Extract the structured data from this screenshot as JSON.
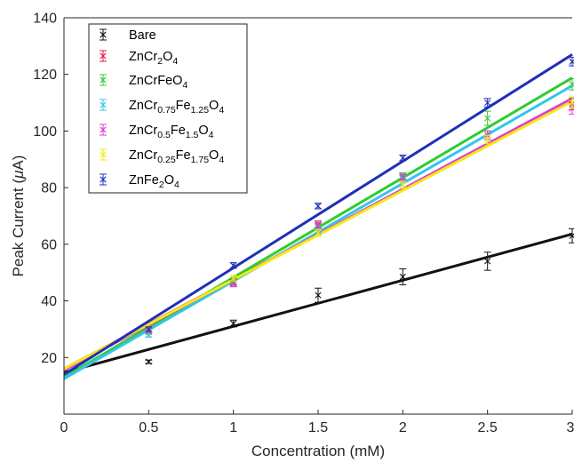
{
  "chart_data": {
    "type": "scatter",
    "xlabel_prefix": "Concentration (mM)",
    "ylabel": {
      "main": "Peak Current (",
      "greek": "μ",
      "unit": "A)"
    },
    "xlim": [
      0,
      3
    ],
    "ylim": [
      0,
      140
    ],
    "xticks": [
      "0",
      "0.5",
      "1",
      "1.5",
      "2",
      "2.5",
      "3"
    ],
    "yticks": [
      "20",
      "40",
      "60",
      "80",
      "100",
      "120",
      "140"
    ],
    "x": [
      0.5,
      1,
      1.5,
      2,
      2.5,
      3
    ],
    "legend_position": "top-left",
    "series": [
      {
        "name": "Bare",
        "legend": [
          {
            "t": "Bare"
          }
        ],
        "color": "#111111",
        "values": [
          18.5,
          32.0,
          42.0,
          48.5,
          54.0,
          63.0
        ],
        "errors": [
          0.6,
          1.2,
          2.5,
          2.8,
          3.2,
          2.5
        ],
        "fit": [
          14.7,
          63.6
        ]
      },
      {
        "name": "ZnCr2O4",
        "legend": [
          {
            "t": "ZnCr"
          },
          {
            "t": "2",
            "sub": true
          },
          {
            "t": "O"
          },
          {
            "t": "4",
            "sub": true
          }
        ],
        "color": "#e8174d",
        "values": [
          29.5,
          46.5,
          67.0,
          84.0,
          98.5,
          109.5
        ],
        "errors": [
          0.8,
          1.0,
          1.2,
          1.2,
          1.5,
          2.0
        ],
        "fit": [
          16.0,
          111.0
        ]
      },
      {
        "name": "ZnCrFeO4",
        "legend": [
          {
            "t": "ZnCrFeO"
          },
          {
            "t": "4",
            "sub": true
          }
        ],
        "color": "#2fcc2f",
        "values": [
          29.0,
          47.0,
          66.0,
          84.0,
          104.5,
          116.5
        ],
        "errors": [
          0.8,
          1.0,
          1.2,
          1.2,
          2.5,
          2.0
        ],
        "fit": [
          13.0,
          118.8
        ]
      },
      {
        "name": "ZnCr0.75Fe1.25O4",
        "legend": [
          {
            "t": "ZnCr"
          },
          {
            "t": "0.75",
            "sub": true
          },
          {
            "t": "Fe"
          },
          {
            "t": "1.25",
            "sub": true
          },
          {
            "t": "O"
          },
          {
            "t": "4",
            "sub": true
          }
        ],
        "color": "#33c6e8",
        "values": [
          28.0,
          46.0,
          65.0,
          83.0,
          98.5,
          110.0
        ],
        "errors": [
          0.8,
          1.0,
          1.2,
          1.2,
          1.5,
          2.0
        ],
        "fit": [
          12.5,
          116.0
        ]
      },
      {
        "name": "ZnCr0.5Fe1.5O4",
        "legend": [
          {
            "t": "ZnCr"
          },
          {
            "t": "0.5",
            "sub": true
          },
          {
            "t": "Fe"
          },
          {
            "t": "1.5",
            "sub": true
          },
          {
            "t": "O"
          },
          {
            "t": "4",
            "sub": true
          }
        ],
        "color": "#e23ad6",
        "values": [
          29.5,
          46.0,
          66.5,
          83.5,
          98.5,
          108.0
        ],
        "errors": [
          0.8,
          1.0,
          1.2,
          1.2,
          1.5,
          2.0
        ],
        "fit": [
          15.5,
          111.5
        ]
      },
      {
        "name": "ZnCr0.25Fe1.75O4",
        "legend": [
          {
            "t": "ZnCr"
          },
          {
            "t": "0.25",
            "sub": true
          },
          {
            "t": "Fe"
          },
          {
            "t": "1.75",
            "sub": true
          },
          {
            "t": "O"
          },
          {
            "t": "4",
            "sub": true
          }
        ],
        "color": "#f2ea12",
        "values": [
          30.0,
          48.0,
          64.0,
          81.0,
          97.0,
          110.0
        ],
        "errors": [
          0.8,
          1.0,
          1.2,
          1.2,
          1.5,
          2.0
        ],
        "fit": [
          16.0,
          110.5
        ]
      },
      {
        "name": "ZnFe2O4",
        "legend": [
          {
            "t": "ZnFe"
          },
          {
            "t": "2",
            "sub": true
          },
          {
            "t": "O"
          },
          {
            "t": "4",
            "sub": true
          }
        ],
        "color": "#1f2fb8",
        "values": [
          30.0,
          52.5,
          73.5,
          90.5,
          110.0,
          124.5
        ],
        "errors": [
          0.8,
          1.0,
          1.0,
          1.0,
          1.5,
          1.5
        ],
        "fit": [
          14.0,
          127.0
        ]
      }
    ]
  }
}
